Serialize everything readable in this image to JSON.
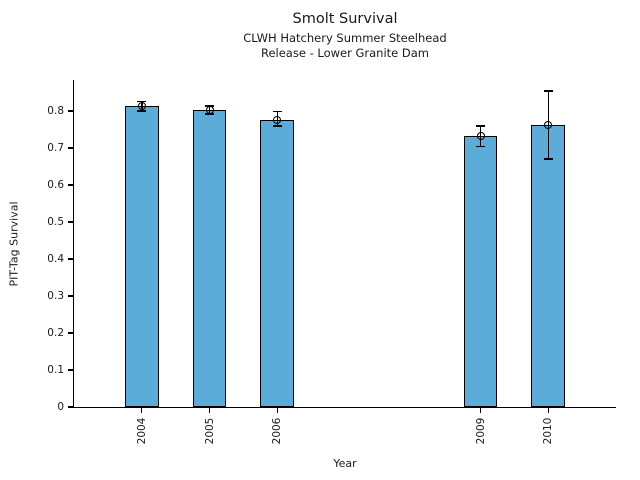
{
  "header": {
    "title": "Smolt Survival",
    "subtitle_line1": "CLWH Hatchery Summer Steelhead",
    "subtitle_line2": "Release - Lower Granite Dam"
  },
  "chart_data": {
    "type": "bar",
    "title": "Smolt Survival",
    "subtitle": [
      "CLWH Hatchery Summer Steelhead",
      "Release - Lower Granite Dam"
    ],
    "categories": [
      "2004",
      "2005",
      "2006",
      "2009",
      "2010"
    ],
    "x": [
      2004,
      2005,
      2006,
      2009,
      2010
    ],
    "values": [
      0.813,
      0.803,
      0.777,
      0.732,
      0.762
    ],
    "error_plus": [
      0.013,
      0.011,
      0.022,
      0.028,
      0.092
    ],
    "error_minus": [
      0.013,
      0.011,
      0.018,
      0.028,
      0.092
    ],
    "xlabel": "Year",
    "ylabel": "PIT-Tag Survival",
    "xlim": [
      2003,
      2011
    ],
    "ylim": [
      0,
      0.884
    ],
    "yticks": [
      0,
      0.1,
      0.2,
      0.3,
      0.4,
      0.5,
      0.6,
      0.7,
      0.8
    ],
    "ytick_labels": [
      "0",
      "0.1",
      "0.2",
      "0.3",
      "0.4",
      "0.5",
      "0.6",
      "0.7",
      "0.8"
    ],
    "bar_width_years": 0.5,
    "bar_color": "#5BACD9",
    "bar_edge_color": "#000000",
    "error_color": "#000000",
    "marker": "open-circle",
    "grid": false,
    "legend": null
  }
}
